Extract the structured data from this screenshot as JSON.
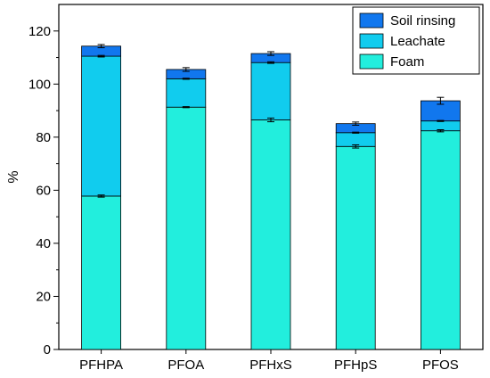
{
  "chart_data": {
    "type": "bar",
    "stacked": true,
    "categories": [
      "PFHPA",
      "PFOA",
      "PFHxS",
      "PFHpS",
      "PFOS"
    ],
    "series": [
      {
        "name": "Foam",
        "values": [
          57.8,
          91.3,
          86.5,
          76.5,
          82.4
        ],
        "errors": [
          0.4,
          0.2,
          0.7,
          0.6,
          0.4
        ],
        "color": "#22EEDD"
      },
      {
        "name": "Leachate",
        "values": [
          52.7,
          10.7,
          21.6,
          5.2,
          3.7
        ],
        "errors": [
          0.3,
          0.2,
          0.3,
          0.2,
          0.2
        ],
        "color": "#11CCEE"
      },
      {
        "name": "Soil rinsing",
        "values": [
          3.8,
          3.5,
          3.4,
          3.4,
          7.6
        ],
        "errors": [
          0.6,
          0.7,
          0.7,
          0.6,
          1.3
        ],
        "color": "#1177EE"
      }
    ],
    "legend_order": [
      "Soil rinsing",
      "Leachate",
      "Foam"
    ],
    "legend_position": "top-right",
    "title": "",
    "xlabel": "",
    "ylabel": "%",
    "ylim": [
      0,
      130
    ],
    "yticks": [
      0,
      20,
      40,
      60,
      80,
      100,
      120
    ],
    "grid": false
  }
}
